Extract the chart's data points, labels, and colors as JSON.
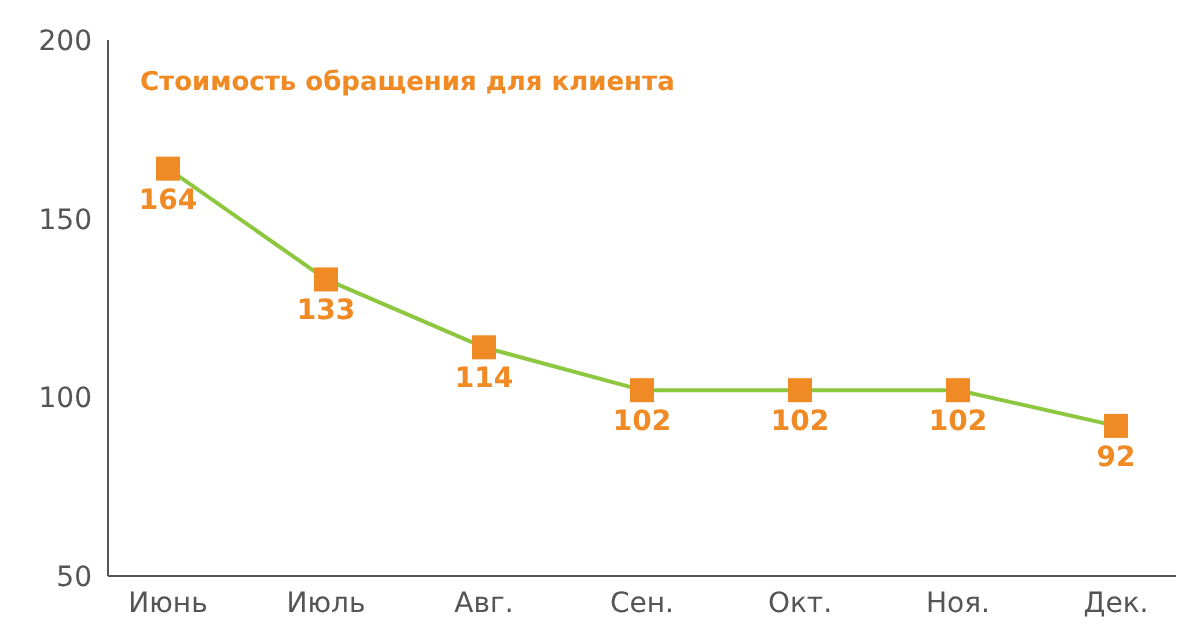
{
  "chart_data": {
    "type": "line",
    "title": "Стоимость обращения для клиента",
    "categories": [
      "Июнь",
      "Июль",
      "Авг.",
      "Сен.",
      "Окт.",
      "Ноя.",
      "Дек."
    ],
    "series": [
      {
        "color": "#8dc63f",
        "colors": [
          "#f08a24",
          "#f08a24",
          "#f08a24",
          "#f08a24",
          "#f08a24",
          "#f08a24",
          "#f08a24"
        ],
        "values": [
          164,
          133,
          114,
          102,
          102,
          102,
          92
        ]
      }
    ],
    "ylim": [
      50,
      200
    ],
    "yticks": [
      50,
      100,
      150,
      200
    ],
    "marker": "square",
    "line_style": "solid",
    "data_labels": true
  }
}
